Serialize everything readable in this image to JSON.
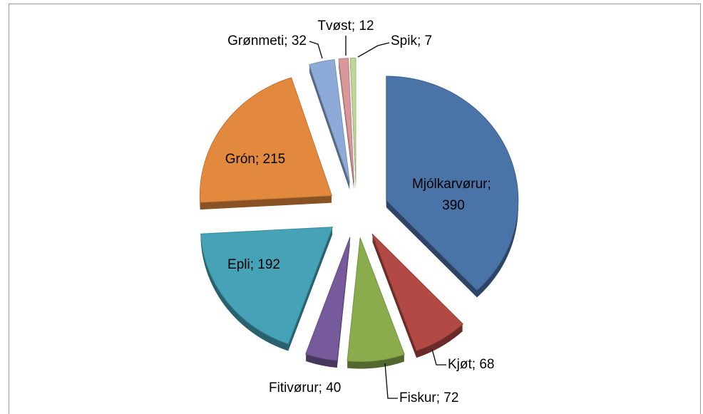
{
  "chart_data": {
    "type": "pie",
    "values": [
      390,
      68,
      72,
      40,
      192,
      215,
      32,
      12,
      7
    ],
    "value_labels": [
      "Mjólkarvørur; 390",
      "Kjøt; 68",
      "Fiskur; 72",
      "Fitivørur; 40",
      "Epli; 192",
      "Grón; 215",
      "Grønmeti; 32",
      "Tvøst; 12",
      "Spik; 7"
    ],
    "colors": [
      "#4a73a8",
      "#b24945",
      "#8aac4d",
      "#765a9c",
      "#46a2b7",
      "#e3893e",
      "#8eaad8",
      "#d9979a",
      "#c0d597"
    ]
  }
}
